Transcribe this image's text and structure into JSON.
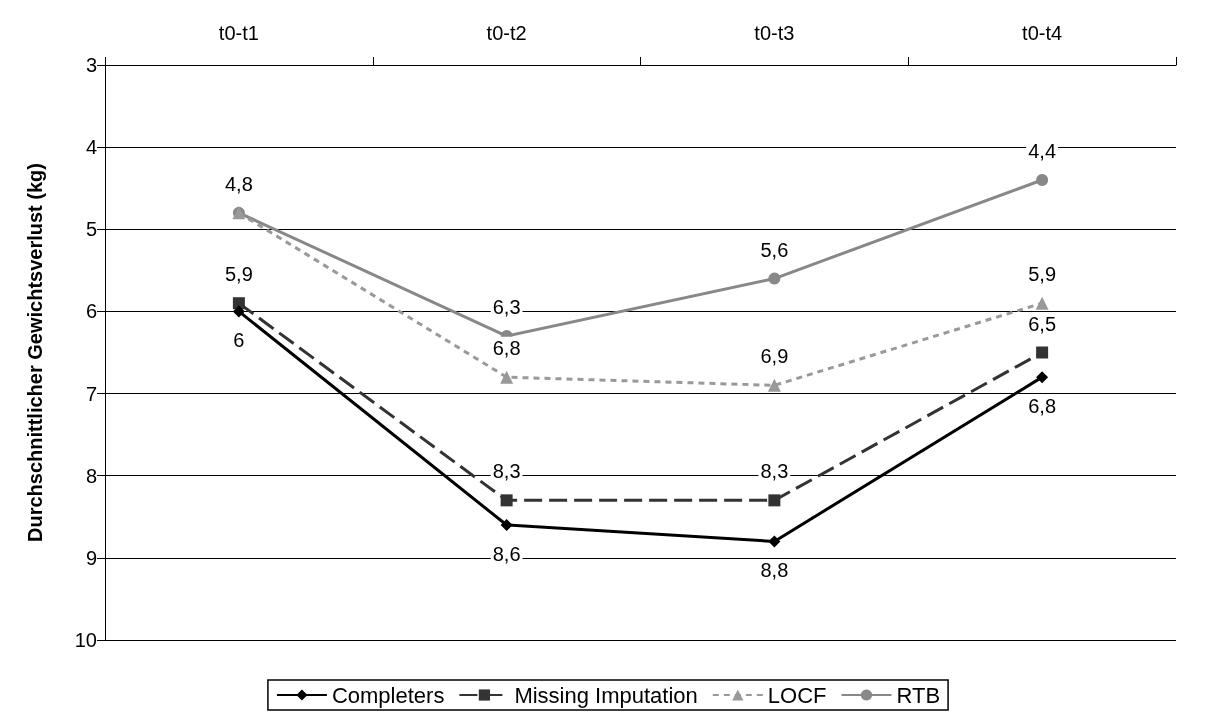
{
  "chart_data": {
    "type": "line",
    "ylabel": "Durchschnittlicher Gewichtsverlust (kg)",
    "categories": [
      "t0-t1",
      "t0-t2",
      "t0-t3",
      "t0-t4"
    ],
    "series": [
      {
        "name": "Completers",
        "color": "#000000",
        "marker": "diamond",
        "line_style": "solid",
        "values": [
          6,
          8.6,
          8.8,
          6.8
        ],
        "value_labels": [
          "6",
          "8,6",
          "8,8",
          "6,8"
        ]
      },
      {
        "name": "Missing Imputation",
        "color": "#333333",
        "marker": "square",
        "line_style": "dashed",
        "values": [
          5.9,
          8.3,
          8.3,
          6.5
        ],
        "value_labels": [
          "5,9",
          "8,3",
          "8,3",
          "6,5"
        ]
      },
      {
        "name": "LOCF",
        "color": "#999999",
        "marker": "triangle",
        "line_style": "dotted",
        "values": [
          4.8,
          6.8,
          6.9,
          5.9
        ],
        "value_labels": [
          null,
          "6,8",
          "6,9",
          "5,9"
        ]
      },
      {
        "name": "RTB",
        "color": "#888888",
        "marker": "circle",
        "line_style": "solid",
        "values": [
          4.8,
          6.3,
          5.6,
          4.4
        ],
        "value_labels": [
          "4,8",
          "6,3",
          "5,6",
          "4,4"
        ]
      }
    ],
    "ylim": [
      10,
      3
    ],
    "yticks": [
      3,
      4,
      5,
      6,
      7,
      8,
      9,
      10
    ],
    "grid": "y",
    "legend": "bottom"
  }
}
